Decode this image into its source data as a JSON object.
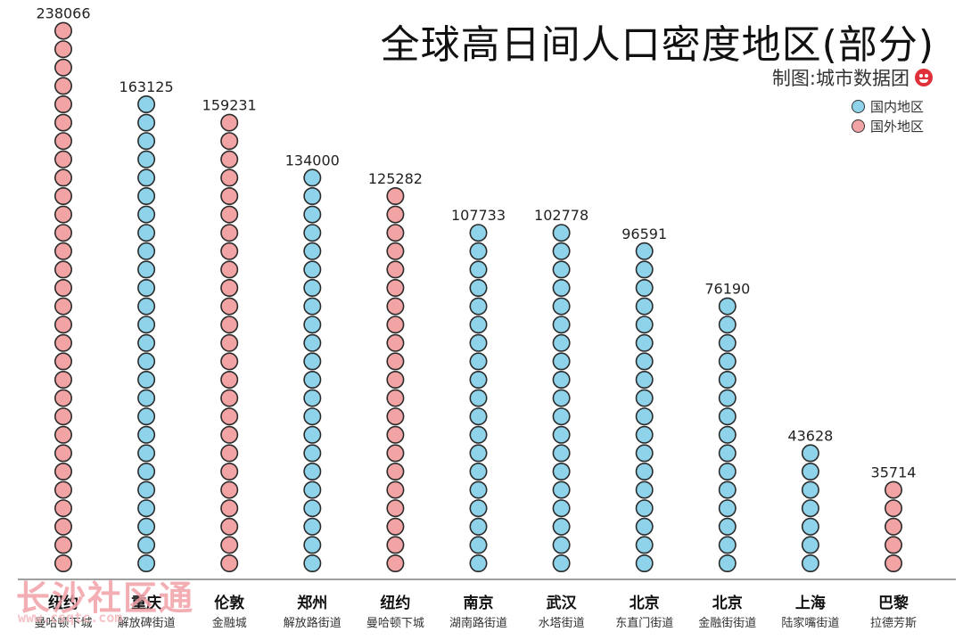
{
  "title": "全球高日间人口密度地区(部分)",
  "subtitle": "制图:城市数据团",
  "watermark": {
    "text": "长沙社区通",
    "url": "www.csqtc.com"
  },
  "colors": {
    "domestic": "#8ed3ea",
    "foreign": "#f2a3a3",
    "outline": "#2b2b2b",
    "axis": "#666666"
  },
  "chart_data": {
    "type": "bar",
    "style": "stacked circles",
    "title": "全球高日间人口密度地区(部分)",
    "legend": {
      "placement": "top-right",
      "entries": [
        {
          "key": "domestic",
          "label": "国内地区"
        },
        {
          "key": "foreign",
          "label": "国外地区"
        }
      ]
    },
    "categories": [
      {
        "city": "纽约",
        "district": "曼哈顿下城",
        "value": 238066,
        "group": "foreign"
      },
      {
        "city": "重庆",
        "district": "解放碑街道",
        "value": 163125,
        "group": "domestic"
      },
      {
        "city": "伦敦",
        "district": "金融城",
        "value": 159231,
        "group": "foreign"
      },
      {
        "city": "郑州",
        "district": "解放路街道",
        "value": 134000,
        "group": "domestic"
      },
      {
        "city": "纽约",
        "district": "曼哈顿下城",
        "value": 125282,
        "group": "foreign"
      },
      {
        "city": "南京",
        "district": "湖南路街道",
        "value": 107733,
        "group": "domestic"
      },
      {
        "city": "武汉",
        "district": "水塔街道",
        "value": 102778,
        "group": "domestic"
      },
      {
        "city": "北京",
        "district": "东直门街道",
        "value": 96591,
        "group": "domestic"
      },
      {
        "city": "北京",
        "district": "金融街街道",
        "value": 76190,
        "group": "domestic"
      },
      {
        "city": "上海",
        "district": "陆家嘴街道",
        "value": 43628,
        "group": "domestic"
      },
      {
        "city": "巴黎",
        "district": "拉德芳斯",
        "value": 35714,
        "group": "foreign"
      }
    ],
    "circle_counts": [
      30,
      26,
      25,
      22,
      21,
      19,
      19,
      18,
      15,
      7,
      5
    ]
  }
}
